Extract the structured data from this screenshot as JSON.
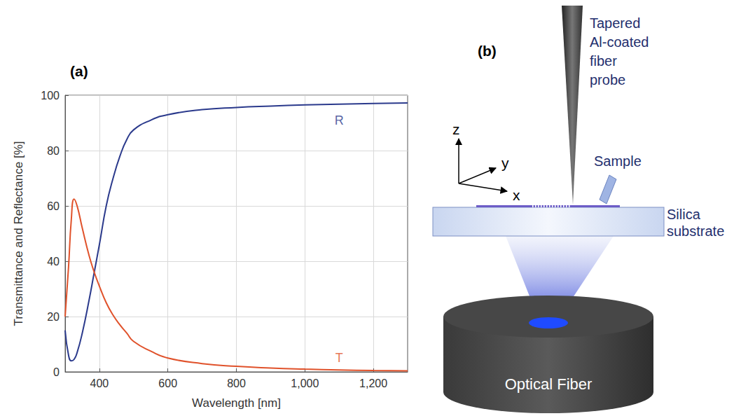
{
  "chart_data": {
    "type": "line",
    "title": "(a)",
    "x_label": "Wavelength [nm]",
    "y_label": "Transmittance and Reflectance [%]",
    "x": [
      300,
      310,
      318,
      326,
      335,
      350,
      370,
      385,
      400,
      420,
      440,
      460,
      480,
      500,
      550,
      600,
      700,
      800,
      900,
      1000,
      1100,
      1200,
      1300
    ],
    "series": [
      {
        "name": "R",
        "color": "#2b3a8c",
        "values": [
          15,
          6,
          4,
          4.5,
          7,
          14,
          26,
          36,
          46,
          60,
          70,
          78,
          84,
          87.5,
          91,
          93,
          94.8,
          95.6,
          96.1,
          96.5,
          96.8,
          97,
          97.2
        ]
      },
      {
        "name": "T",
        "color": "#e0522b",
        "values": [
          20,
          38,
          55,
          62.5,
          60,
          52,
          42,
          36,
          31,
          25,
          20.5,
          17,
          14,
          11,
          7.5,
          5,
          3,
          2,
          1.4,
          1,
          0.7,
          0.5,
          0.4
        ]
      }
    ],
    "annotations": [
      {
        "text": "R",
        "x": 1100,
        "y": 91,
        "color": "#2b3a8c"
      },
      {
        "text": "T",
        "x": 1100,
        "y": 5,
        "color": "#e0522b"
      }
    ],
    "xlim": [
      300,
      1300
    ],
    "xticks": [
      400,
      600,
      800,
      1000,
      1200
    ],
    "ylim": [
      0,
      100
    ],
    "yticks": [
      0,
      20,
      40,
      60,
      80,
      100
    ],
    "grid": true
  },
  "diagram": {
    "label": "(b)",
    "probe": "Tapered Al-coated fiber probe",
    "axes": {
      "x": "x",
      "y": "y",
      "z": "z"
    },
    "sample": "Sample",
    "substrate": "Silica substrate",
    "fiber": "Optical Fiber"
  }
}
